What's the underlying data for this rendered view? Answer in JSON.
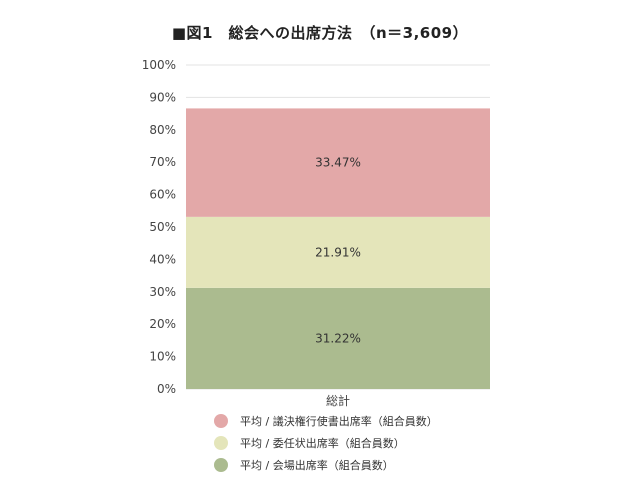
{
  "chart_data": {
    "type": "bar",
    "stacked": true,
    "title": "■図1　総会への出席方法　（n＝3,609）",
    "categories": [
      "総計"
    ],
    "ylim": [
      0,
      100
    ],
    "ytick_values": [
      0,
      10,
      20,
      30,
      40,
      50,
      60,
      70,
      80,
      90,
      100
    ],
    "ytick_labels": [
      "0%",
      "10%",
      "20%",
      "30%",
      "40%",
      "50%",
      "60%",
      "70%",
      "80%",
      "90%",
      "100%"
    ],
    "grid": true,
    "legend_position": "bottom",
    "series": [
      {
        "name": "平均 / 会場出席率（組合員数）",
        "values": [
          31.22
        ],
        "value_label": "31.22%",
        "color": "#abbb8f"
      },
      {
        "name": "平均 / 委任状出席率（組合員数）",
        "values": [
          21.91
        ],
        "value_label": "21.91%",
        "color": "#e4e5ba"
      },
      {
        "name": "平均 / 議決権行使書出席率（組合員数）",
        "values": [
          33.47
        ],
        "value_label": "33.47%",
        "color": "#e3a8a8"
      }
    ],
    "legend_order": [
      "平均 / 議決権行使書出席率（組合員数）",
      "平均 / 委任状出席率（組合員数）",
      "平均 / 会場出席率（組合員数）"
    ],
    "legend_colors": [
      "#e3a8a8",
      "#e4e5ba",
      "#abbb8f"
    ]
  }
}
